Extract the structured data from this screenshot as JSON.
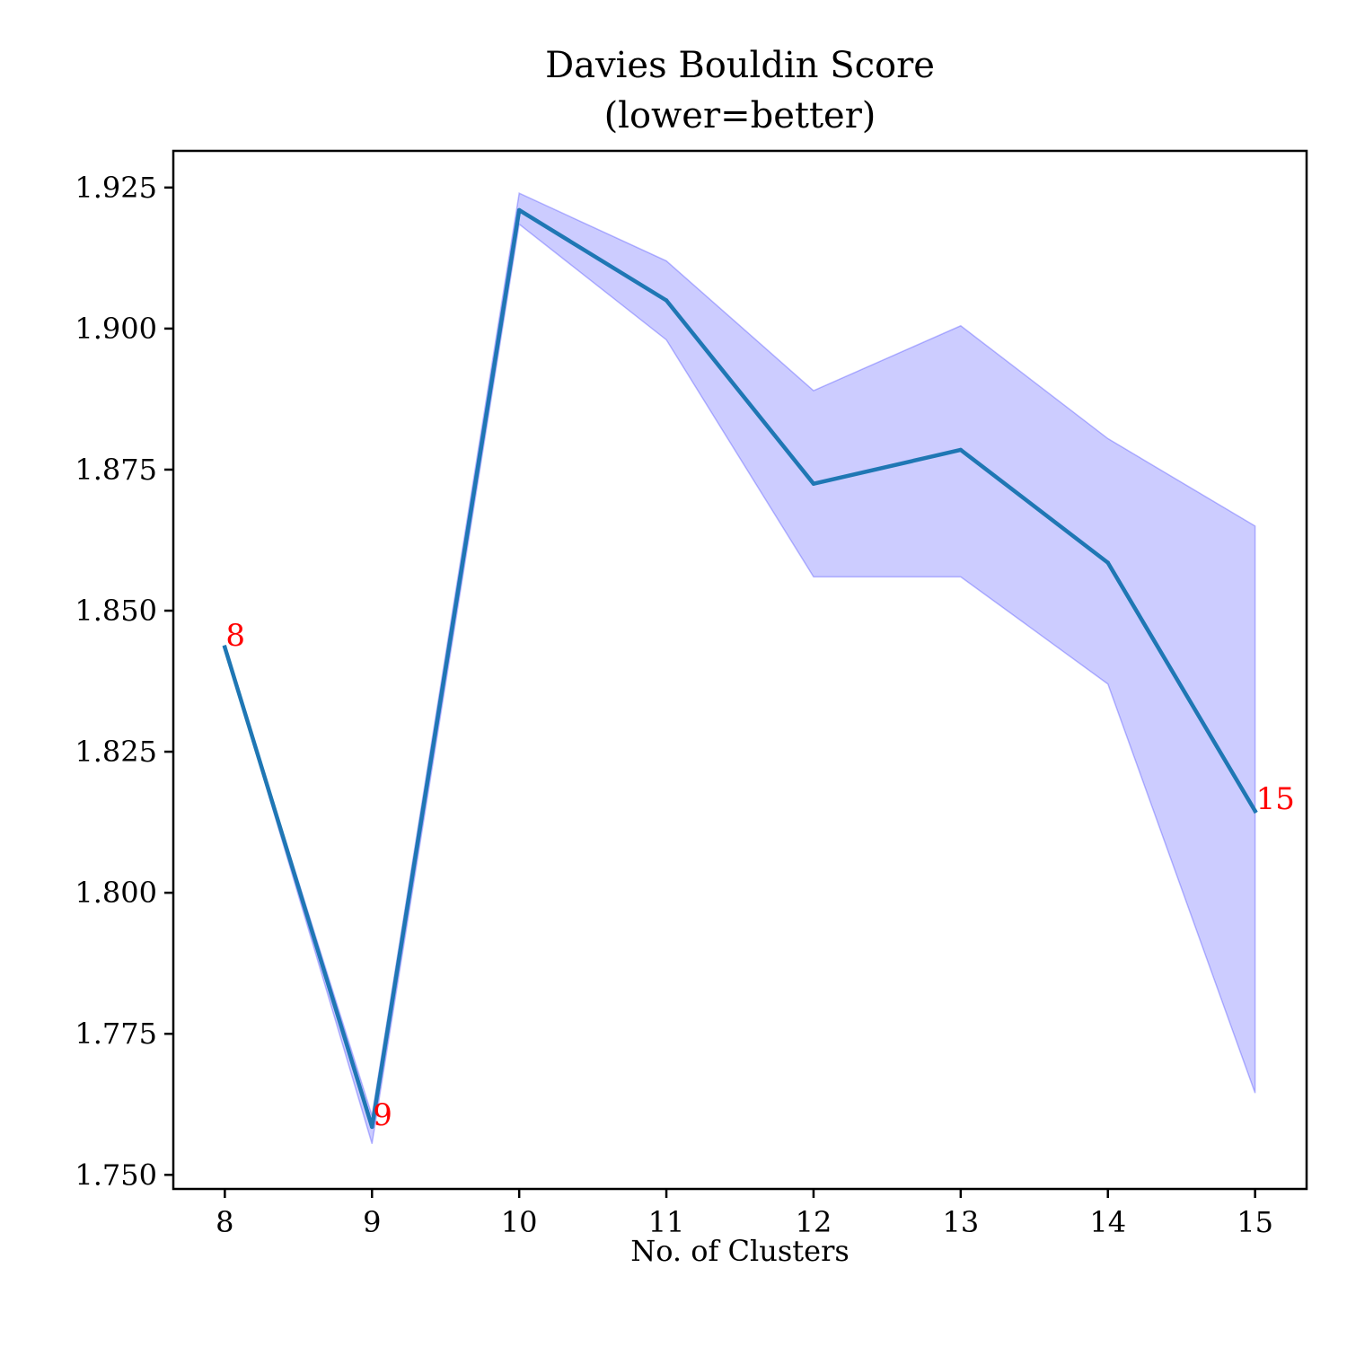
{
  "chart_data": {
    "type": "line",
    "title": "Davies Bouldin Score\n(lower=better)",
    "title_lines": [
      "Davies Bouldin Score",
      "(lower=better)"
    ],
    "xlabel": "No. of Clusters",
    "ylabel": "",
    "x": [
      8,
      9,
      10,
      11,
      12,
      13,
      14,
      15
    ],
    "xlim": [
      7.65,
      15.35
    ],
    "ylim": [
      1.7475,
      1.9315
    ],
    "x_ticks": [
      8,
      9,
      10,
      11,
      12,
      13,
      14,
      15
    ],
    "x_tick_labels": [
      "8",
      "9",
      "10",
      "11",
      "12",
      "13",
      "14",
      "15"
    ],
    "y_ticks": [
      1.75,
      1.775,
      1.8,
      1.825,
      1.85,
      1.875,
      1.9,
      1.925
    ],
    "y_tick_labels": [
      "1.750",
      "1.775",
      "1.800",
      "1.825",
      "1.850",
      "1.875",
      "1.900",
      "1.925"
    ],
    "grid": false,
    "series": [
      {
        "values": [
          1.8435,
          1.7585,
          1.921,
          1.905,
          1.8725,
          1.8785,
          1.8585,
          1.8145
        ],
        "color": "#1f77b4"
      }
    ],
    "band": {
      "lower": [
        1.8435,
        1.7555,
        1.9185,
        1.898,
        1.856,
        1.856,
        1.837,
        1.7645
      ],
      "upper": [
        1.8435,
        1.7605,
        1.924,
        1.912,
        1.889,
        1.9005,
        1.8805,
        1.865
      ],
      "fill_color": "#0000ff",
      "fill_opacity": 0.2
    },
    "annotations": [
      {
        "text": "8",
        "x": 8,
        "y": 1.8435,
        "color": "#ff0000"
      },
      {
        "text": "9",
        "x": 9,
        "y": 1.7585,
        "color": "#ff0000"
      },
      {
        "text": "15",
        "x": 15,
        "y": 1.8145,
        "color": "#ff0000"
      }
    ]
  }
}
